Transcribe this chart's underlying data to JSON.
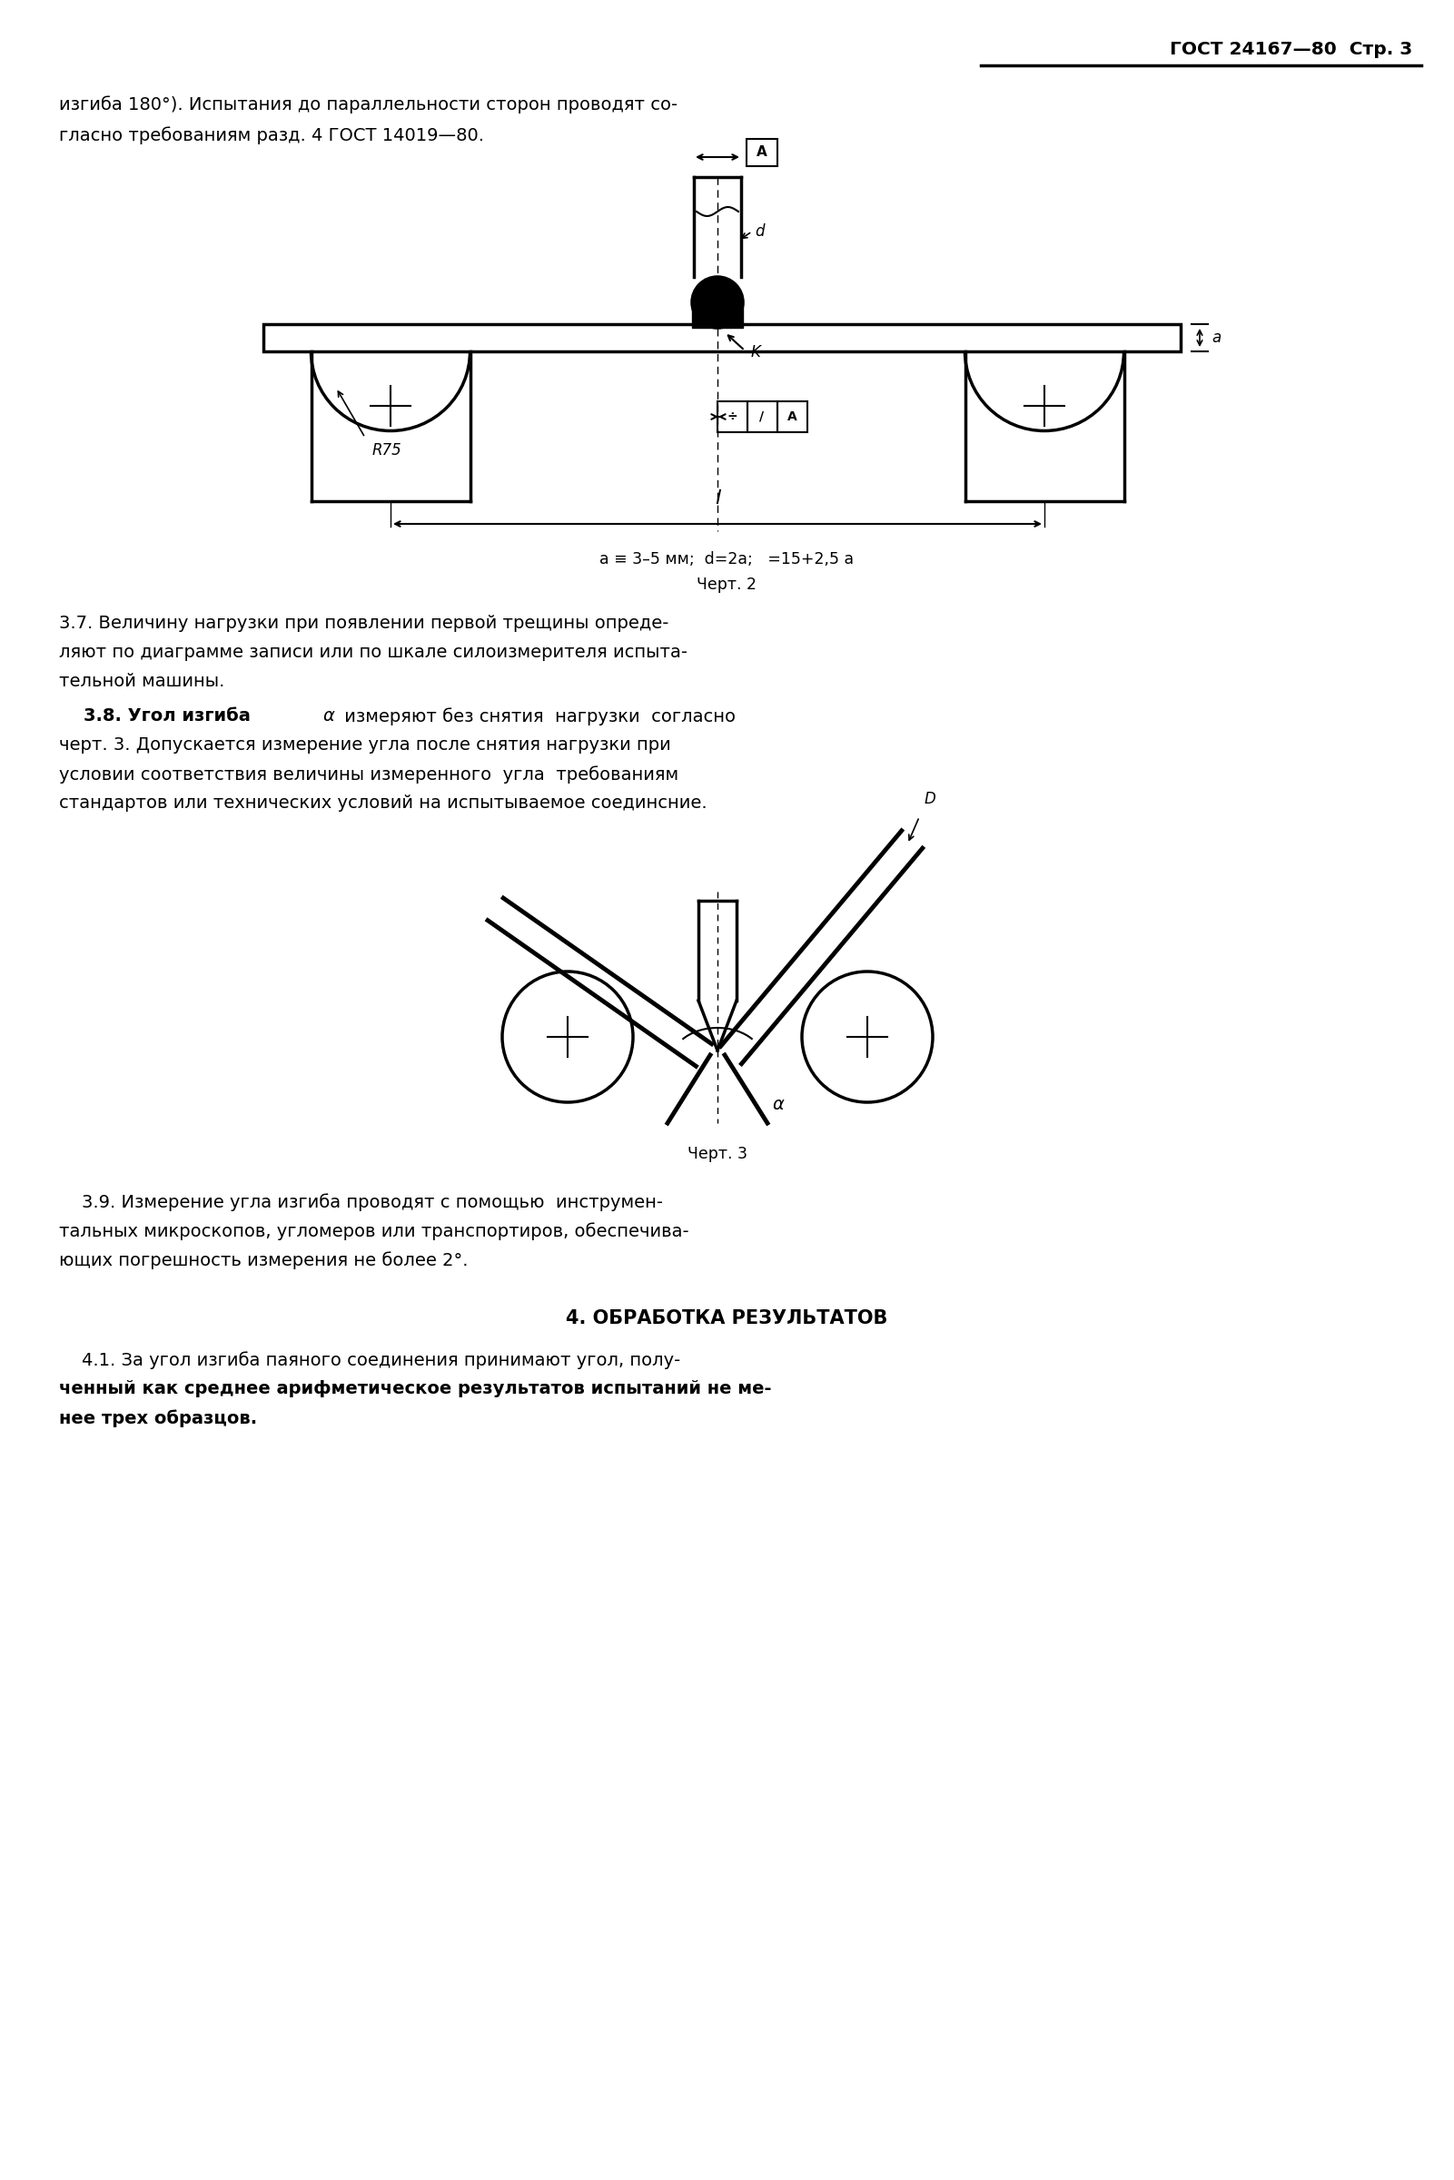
{
  "page_header": "ГОСТ 24167—80  Стр. 3",
  "bg_color": "#ffffff",
  "text_color": "#000000",
  "line1": "изгиба 180°). Испытания до параллельности сторон проводят со-",
  "line2": "гласно требованиям разд. 4 ГОСТ 14019—80.",
  "cap1_line1": "a ≡ 3–5 мм;  d=2a;   =15+2,5 a",
  "cap1_line2": "Черт. 2",
  "p37_l1": "3.7. Величину нагрузки при появлении первой трещины опреде-",
  "p37_l2": "ляют по диаграмме записи или по шкале силоизмерителя испыта-",
  "p37_l3": "тельной машины.",
  "p38_prefix": "    3.8. Угол изгиба ",
  "p38_alpha": "α",
  "p38_suffix": " измеряют без снятия  нагрузки  согласно",
  "p38_l2": "черт. 3. Допускается измерение угла после снятия нагрузки при",
  "p38_l3": "условии соответствия величины измеренного  угла  требованиям",
  "p38_l4": "стандартов или технических условий на испытываемое соединсние.",
  "cap2": "Черт. 3",
  "p39_l1": "    3.9. Измерение угла изгиба проводят с помощью  инструмен-",
  "p39_l2": "тальных микроскопов, угломеров или транспортиров, обеспечива-",
  "p39_l3": "ющих погрешность измерения не более 2°.",
  "sec4": "4. ОБРАБОТКА РЕЗУЛЬТАТОВ",
  "p41_l1": "    4.1. За угол изгиба паяного соединения принимают угол, полу-",
  "p41_l2": "ченный как среднее арифметическое результатов испытаний не ме-",
  "p41_l3": "нее трех образцов."
}
